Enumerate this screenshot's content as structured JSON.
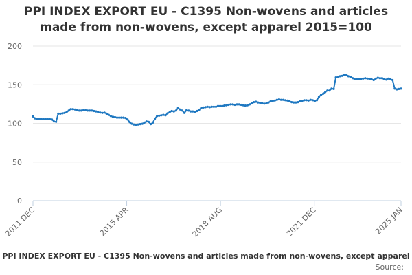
{
  "chart_data": {
    "type": "line",
    "title": "PPI INDEX EXPORT EU - C1395 Non-wovens and articles made from non-wovens, except apparel 2015=100",
    "ylim": [
      0,
      200
    ],
    "yticks": [
      0,
      50,
      100,
      150,
      200
    ],
    "xticks": [
      "2011 DEC",
      "2015 APR",
      "2018 AUG",
      "2021 DEC",
      "2025 JAN"
    ],
    "x_start": "2011-12",
    "x_end": "2025-01",
    "series": [
      {
        "color": "#1f78c1",
        "values": [
          109.0,
          106.5,
          106.0,
          106.0,
          105.5,
          105.5,
          105.5,
          105.5,
          105.5,
          105.0,
          102.5,
          102.0,
          112.5,
          112.5,
          113.0,
          113.5,
          114.5,
          116.5,
          118.5,
          118.5,
          118.0,
          117.0,
          116.5,
          116.5,
          117.0,
          117.0,
          116.5,
          116.5,
          116.5,
          116.0,
          115.5,
          114.5,
          114.0,
          113.5,
          114.0,
          112.5,
          111.0,
          109.5,
          108.5,
          108.0,
          107.5,
          107.5,
          107.5,
          107.5,
          107.0,
          105.0,
          101.5,
          99.5,
          98.5,
          98.0,
          98.5,
          99.0,
          99.5,
          101.0,
          102.5,
          102.0,
          99.0,
          101.0,
          106.0,
          109.5,
          110.0,
          110.5,
          111.0,
          110.5,
          113.0,
          114.5,
          116.0,
          115.5,
          116.5,
          120.0,
          118.0,
          116.5,
          113.5,
          117.0,
          116.5,
          115.5,
          115.5,
          115.0,
          116.0,
          117.5,
          120.0,
          120.5,
          121.0,
          121.5,
          121.0,
          121.5,
          121.5,
          121.5,
          122.5,
          122.5,
          122.5,
          123.0,
          123.5,
          124.0,
          124.5,
          124.5,
          124.0,
          124.5,
          124.5,
          124.0,
          123.5,
          123.0,
          123.5,
          124.5,
          126.0,
          127.5,
          128.0,
          127.0,
          126.5,
          126.0,
          125.5,
          126.0,
          127.0,
          128.5,
          129.0,
          129.5,
          130.5,
          131.0,
          130.5,
          130.5,
          130.0,
          129.5,
          128.5,
          127.5,
          127.0,
          127.0,
          127.5,
          128.5,
          129.0,
          130.0,
          130.0,
          129.5,
          130.5,
          130.0,
          129.0,
          130.0,
          134.5,
          137.0,
          138.5,
          140.5,
          142.5,
          142.5,
          145.0,
          144.5,
          159.5,
          160.0,
          161.0,
          161.5,
          162.5,
          163.0,
          161.0,
          160.0,
          158.5,
          157.0,
          157.0,
          157.5,
          157.5,
          158.0,
          158.5,
          158.0,
          157.5,
          157.0,
          156.0,
          158.0,
          159.0,
          158.5,
          158.5,
          157.0,
          156.5,
          158.0,
          157.0,
          156.0,
          145.0,
          144.0,
          144.5,
          145.0
        ]
      }
    ]
  },
  "footer": {
    "series_name": "PPI INDEX EXPORT EU - C1395 Non-wovens and articles made from non-wovens, except apparel",
    "source": "Source:"
  }
}
